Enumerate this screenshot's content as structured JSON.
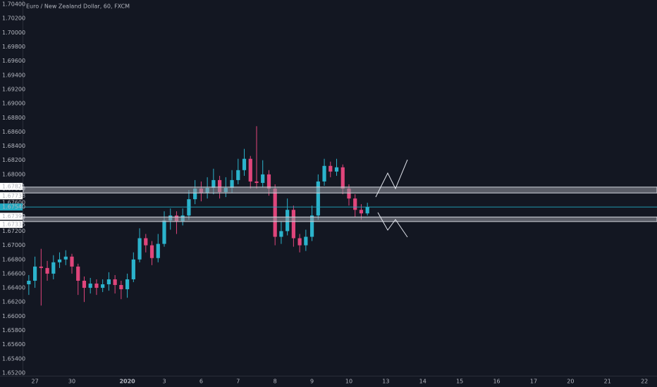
{
  "chart_data": {
    "type": "candlestick",
    "title": "Euro / New Zealand Dollar, 60, FXCM",
    "up_color": "#2bb3cc",
    "down_color": "#e0457b",
    "zone_color": "#9598a1",
    "last_price_color": "#22a9c1",
    "ylim": [
      1.6516,
      1.7046
    ],
    "yticks": [
      {
        "value": 1.652,
        "label": "1.65200"
      },
      {
        "value": 1.654,
        "label": "1.65400"
      },
      {
        "value": 1.656,
        "label": "1.65600"
      },
      {
        "value": 1.658,
        "label": "1.65800"
      },
      {
        "value": 1.66,
        "label": "1.66000"
      },
      {
        "value": 1.662,
        "label": "1.66200"
      },
      {
        "value": 1.664,
        "label": "1.66400"
      },
      {
        "value": 1.666,
        "label": "1.66600"
      },
      {
        "value": 1.668,
        "label": "1.66800"
      },
      {
        "value": 1.67,
        "label": "1.67000"
      },
      {
        "value": 1.672,
        "label": "1.67200"
      },
      {
        "value": 1.674,
        "label": "1.67400"
      },
      {
        "value": 1.676,
        "label": "1.67600"
      },
      {
        "value": 1.678,
        "label": "1.67800"
      },
      {
        "value": 1.68,
        "label": "1.68000"
      },
      {
        "value": 1.682,
        "label": "1.68200"
      },
      {
        "value": 1.684,
        "label": "1.68400"
      },
      {
        "value": 1.686,
        "label": "1.68600"
      },
      {
        "value": 1.688,
        "label": "1.68800"
      },
      {
        "value": 1.69,
        "label": "1.69000"
      },
      {
        "value": 1.692,
        "label": "1.69200"
      },
      {
        "value": 1.694,
        "label": "1.69400"
      },
      {
        "value": 1.696,
        "label": "1.69600"
      },
      {
        "value": 1.698,
        "label": "1.69800"
      },
      {
        "value": 1.7,
        "label": "1.70000"
      },
      {
        "value": 1.702,
        "label": "1.70200"
      },
      {
        "value": 1.704,
        "label": "1.70400"
      }
    ],
    "zones": [
      {
        "top": 1.67821,
        "bottom": 1.67738
      },
      {
        "top": 1.67399,
        "bottom": 1.67335
      }
    ],
    "last_price": {
      "value": 1.6754,
      "label": "1.67540"
    },
    "categories": [
      null,
      "27",
      null,
      null,
      null,
      null,
      null,
      "30",
      null,
      null,
      null,
      null,
      null,
      null,
      null,
      null,
      "2020",
      null,
      null,
      null,
      null,
      null,
      "3",
      null,
      null,
      null,
      null,
      null,
      "6",
      null,
      null,
      null,
      null,
      null,
      "7",
      null,
      null,
      null,
      null,
      null,
      "8",
      null,
      null,
      null,
      null,
      null,
      "9",
      null,
      null,
      null,
      null,
      null,
      "10",
      null,
      null,
      null,
      null,
      null,
      "13",
      null,
      null,
      null,
      null,
      null,
      "14",
      null,
      null,
      null,
      null,
      null,
      "15",
      null,
      null,
      null,
      null,
      null,
      "16",
      null,
      null,
      null,
      null,
      null,
      "17",
      null,
      null,
      null,
      null,
      null,
      "20",
      null,
      null,
      null,
      null,
      null,
      "21",
      null,
      null,
      null,
      null,
      null,
      "22",
      null
    ],
    "open": [
      1.6645,
      1.665,
      1.667,
      1.6668,
      1.666,
      1.6676,
      1.668,
      1.6684,
      1.667,
      1.665,
      1.664,
      1.6646,
      1.664,
      1.6645,
      1.6652,
      1.6644,
      1.6638,
      1.6652,
      1.668,
      1.671,
      1.67,
      1.6682,
      1.6702,
      1.6735,
      1.6742,
      1.6734,
      1.6742,
      1.6765,
      1.678,
      1.6774,
      1.6781,
      1.6792,
      1.6775,
      1.6781,
      1.6792,
      1.6806,
      1.6822,
      1.679,
      1.6788,
      1.68,
      1.678,
      1.6712,
      1.672,
      1.675,
      1.671,
      1.67,
      1.6712,
      1.6742,
      1.679,
      1.6812,
      1.6804,
      1.681,
      1.678,
      1.6766,
      1.675,
      1.6745,
      null,
      null,
      null,
      null,
      null,
      null,
      null,
      null,
      null,
      null,
      null,
      null,
      null,
      null,
      null,
      null,
      null,
      null,
      null,
      null,
      null,
      null,
      null,
      null,
      null,
      null,
      null,
      null,
      null,
      null,
      null,
      null,
      null,
      null,
      null,
      null,
      null,
      null,
      null,
      null,
      null,
      null,
      null,
      null,
      null,
      null
    ],
    "high": [
      1.6658,
      1.6684,
      1.6695,
      1.6678,
      1.6686,
      1.669,
      1.6693,
      1.6688,
      1.6674,
      1.6656,
      1.6654,
      1.6652,
      1.6652,
      1.6662,
      1.6658,
      1.665,
      1.666,
      1.669,
      1.6724,
      1.6716,
      1.6706,
      1.6716,
      1.6748,
      1.6752,
      1.6748,
      1.6752,
      1.6778,
      1.6792,
      1.679,
      1.6796,
      1.6808,
      1.6798,
      1.6796,
      1.6806,
      1.6822,
      1.6836,
      1.6826,
      1.6868,
      1.682,
      1.6806,
      1.6786,
      1.6734,
      1.6766,
      1.6756,
      1.6716,
      1.6722,
      1.6756,
      1.68,
      1.6822,
      1.6818,
      1.6822,
      1.6814,
      1.6786,
      1.6772,
      1.6758,
      1.676,
      null,
      null,
      null,
      null,
      null,
      null,
      null,
      null,
      null,
      null,
      null,
      null,
      null,
      null,
      null,
      null,
      null,
      null,
      null,
      null,
      null,
      null,
      null,
      null,
      null,
      null,
      null,
      null,
      null,
      null,
      null,
      null,
      null,
      null,
      null,
      null,
      null,
      null,
      null,
      null,
      null,
      null,
      null,
      null,
      null,
      null
    ],
    "low": [
      1.663,
      1.664,
      1.6615,
      1.665,
      1.6652,
      1.6668,
      1.6672,
      1.666,
      1.663,
      1.662,
      1.6632,
      1.663,
      1.6634,
      1.6636,
      1.6632,
      1.6624,
      1.6626,
      1.6648,
      1.6676,
      1.669,
      1.6672,
      1.6676,
      1.6698,
      1.6722,
      1.6716,
      1.6728,
      1.6736,
      1.6758,
      1.6762,
      1.6766,
      1.6772,
      1.6766,
      1.6768,
      1.6774,
      1.6786,
      1.6798,
      1.678,
      1.678,
      1.6782,
      1.677,
      1.67,
      1.6702,
      1.6714,
      1.6698,
      1.669,
      1.6692,
      1.6706,
      1.6736,
      1.6784,
      1.6796,
      1.6798,
      1.6772,
      1.6756,
      1.674,
      1.6736,
      1.6742,
      null,
      null,
      null,
      null,
      null,
      null,
      null,
      null,
      null,
      null,
      null,
      null,
      null,
      null,
      null,
      null,
      null,
      null,
      null,
      null,
      null,
      null,
      null,
      null,
      null,
      null,
      null,
      null,
      null,
      null,
      null,
      null,
      null,
      null,
      null,
      null,
      null,
      null,
      null,
      null,
      null,
      null,
      null,
      null,
      null,
      null
    ],
    "close": [
      1.665,
      1.667,
      1.6668,
      1.666,
      1.6676,
      1.668,
      1.6684,
      1.667,
      1.665,
      1.664,
      1.6646,
      1.664,
      1.6645,
      1.6652,
      1.6644,
      1.6638,
      1.6652,
      1.668,
      1.671,
      1.67,
      1.6682,
      1.6702,
      1.6735,
      1.6742,
      1.6734,
      1.6742,
      1.6765,
      1.678,
      1.6774,
      1.6781,
      1.6792,
      1.6775,
      1.6781,
      1.6792,
      1.6806,
      1.6822,
      1.679,
      1.6788,
      1.68,
      1.678,
      1.6712,
      1.672,
      1.675,
      1.671,
      1.67,
      1.6712,
      1.6742,
      1.679,
      1.6812,
      1.6804,
      1.681,
      1.678,
      1.6766,
      1.675,
      1.6745,
      1.6754,
      null,
      null,
      null,
      null,
      null,
      null,
      null,
      null,
      null,
      null,
      null,
      null,
      null,
      null,
      null,
      null,
      null,
      null,
      null,
      null,
      null,
      null,
      null,
      null,
      null,
      null,
      null,
      null,
      null,
      null,
      null,
      null,
      null,
      null,
      null,
      null,
      null,
      null,
      null,
      null,
      null,
      null,
      null,
      null,
      null,
      null
    ]
  }
}
